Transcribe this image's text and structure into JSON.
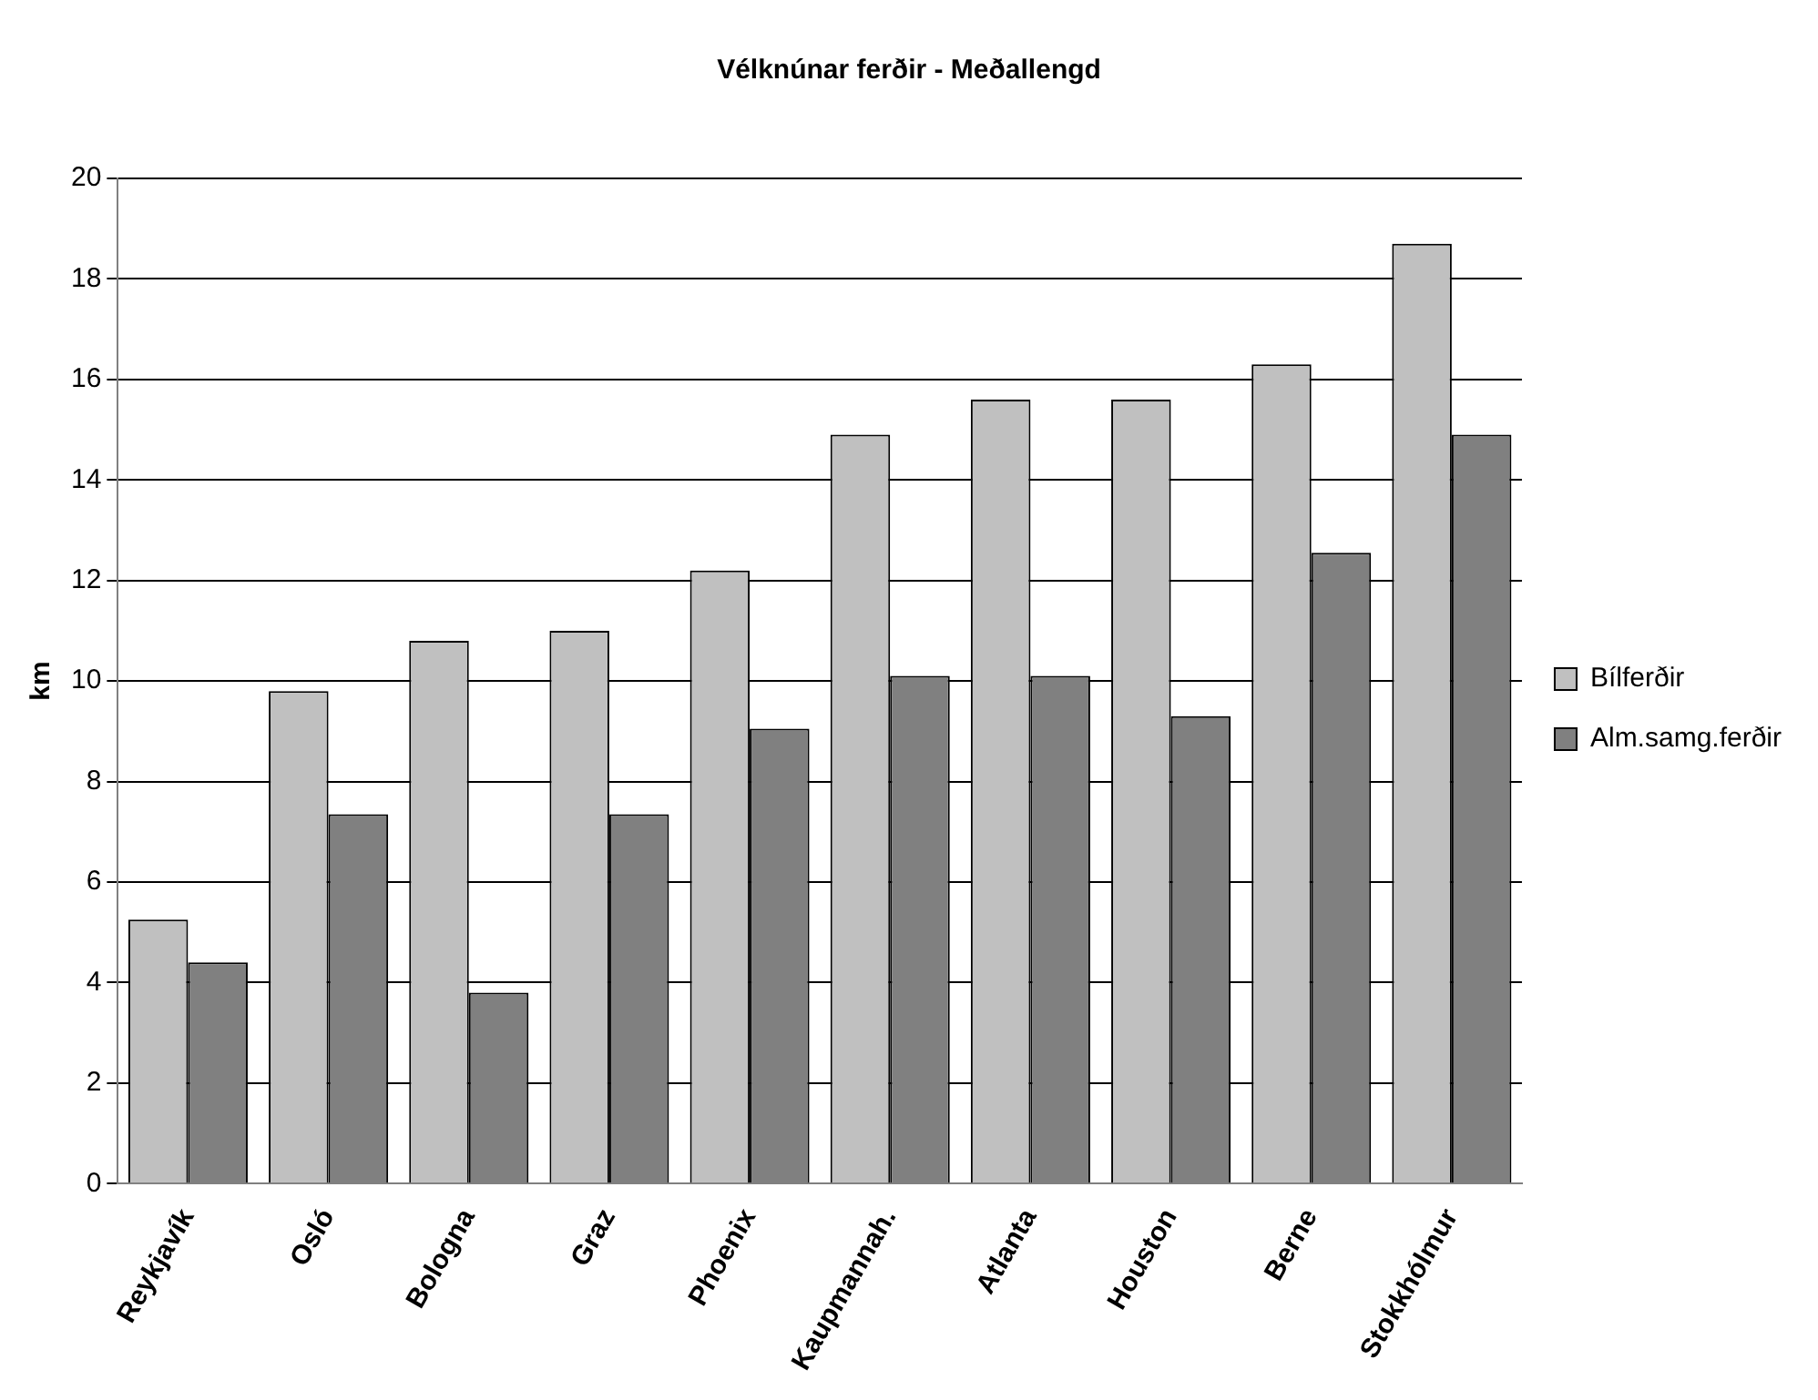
{
  "chart_data": {
    "type": "bar",
    "title": "Vélknúnar ferðir - Meðallengd",
    "ylabel": "km",
    "categories": [
      "Reykjavík",
      "Osló",
      "Bologna",
      "Graz",
      "Phoenix",
      "Kaupmannah.",
      "Atlanta",
      "Houston",
      "Berne",
      "Stokkhólmur"
    ],
    "series": [
      {
        "name": "Bílferðir",
        "color": "#c0c0c0",
        "values": [
          5.25,
          9.8,
          10.8,
          11.0,
          12.2,
          14.9,
          15.6,
          15.6,
          16.3,
          18.7
        ]
      },
      {
        "name": "Alm.samg.ferðir",
        "color": "#808080",
        "values": [
          4.4,
          7.35,
          3.8,
          7.35,
          9.05,
          10.1,
          10.1,
          9.3,
          12.55,
          14.9
        ]
      }
    ],
    "ylim": [
      0,
      20
    ],
    "yticks": [
      0,
      2,
      4,
      6,
      8,
      10,
      12,
      14,
      16,
      18,
      20
    ],
    "grid": "y",
    "legend": "right"
  }
}
